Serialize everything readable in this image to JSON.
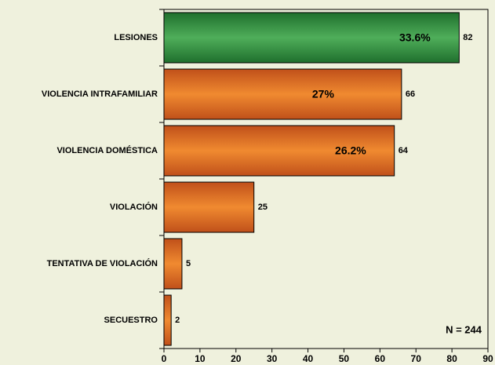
{
  "chart_data": {
    "type": "bar",
    "orientation": "horizontal",
    "categories": [
      "LESIONES",
      "VIOLENCIA INTRAFAMILIAR",
      "VIOLENCIA DOMÉSTICA",
      "VIOLACIÓN",
      "TENTATIVA DE VIOLACIÓN",
      "SECUESTRO"
    ],
    "values": [
      82,
      66,
      64,
      25,
      5,
      2
    ],
    "colors": [
      "#2f8f3f",
      "#e06c1e",
      "#e06c1e",
      "#e06c1e",
      "#e06c1e",
      "#e06c1e"
    ],
    "percent_labels": [
      "33.6%",
      "27%",
      "26.2%"
    ],
    "xlim": [
      0,
      90
    ],
    "xticks": [
      0,
      10,
      20,
      30,
      40,
      50,
      60,
      70,
      80,
      90
    ],
    "annotation": "N = 244"
  }
}
